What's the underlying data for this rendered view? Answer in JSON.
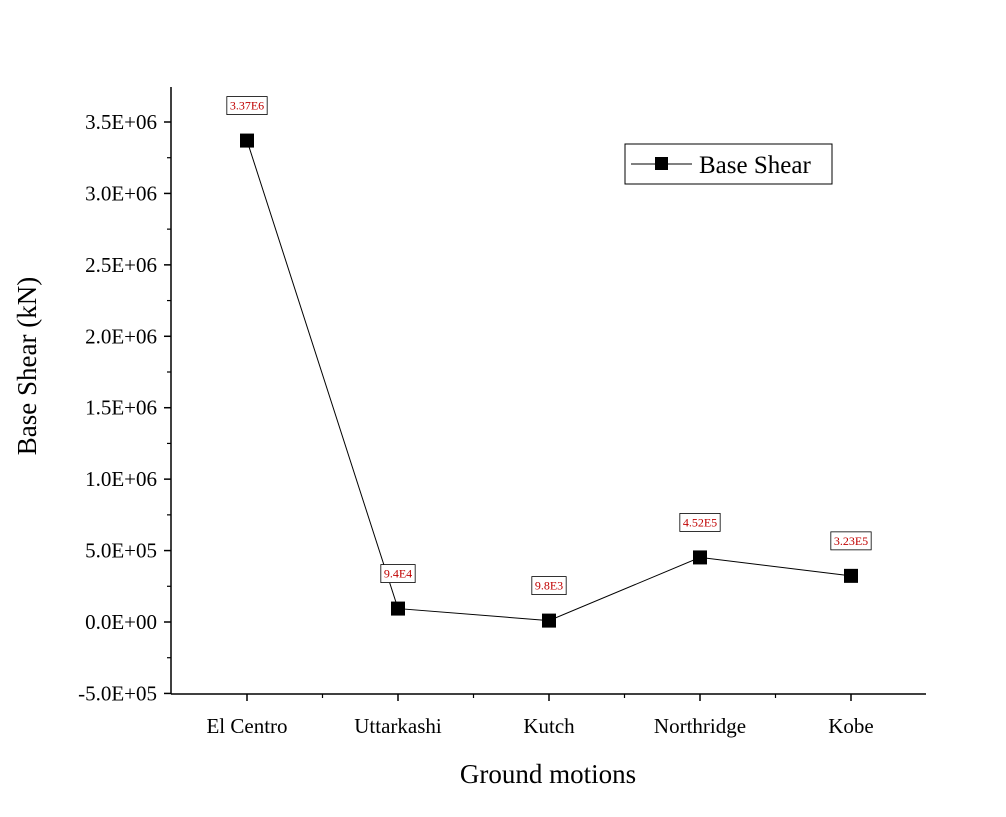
{
  "chart_data": {
    "type": "line",
    "categories": [
      "El Centro",
      "Uttarkashi",
      "Kutch",
      "Northridge",
      "Kobe"
    ],
    "series": [
      {
        "name": "Base Shear",
        "values": [
          3370000,
          94000,
          9800,
          452000,
          323000
        ],
        "data_labels": [
          "3.37E6",
          "9.4E4",
          "9.8E3",
          "4.52E5",
          "3.23E5"
        ],
        "color": "#000000",
        "marker": "square"
      }
    ],
    "title": "",
    "xlabel": "Ground motions",
    "ylabel": "Base Shear (kN)",
    "ylim": [
      -500000,
      3700000
    ],
    "yticks": [
      -500000,
      0,
      500000,
      1000000,
      1500000,
      2000000,
      2500000,
      3000000,
      3500000
    ],
    "ytick_labels": [
      "-5.0E+05",
      "0.0E+00",
      "5.0E+05",
      "1.0E+06",
      "1.5E+06",
      "2.0E+06",
      "2.5E+06",
      "3.0E+06",
      "3.5E+06"
    ],
    "grid": false,
    "legend_position": "top-right",
    "label_color": "#c00000"
  }
}
